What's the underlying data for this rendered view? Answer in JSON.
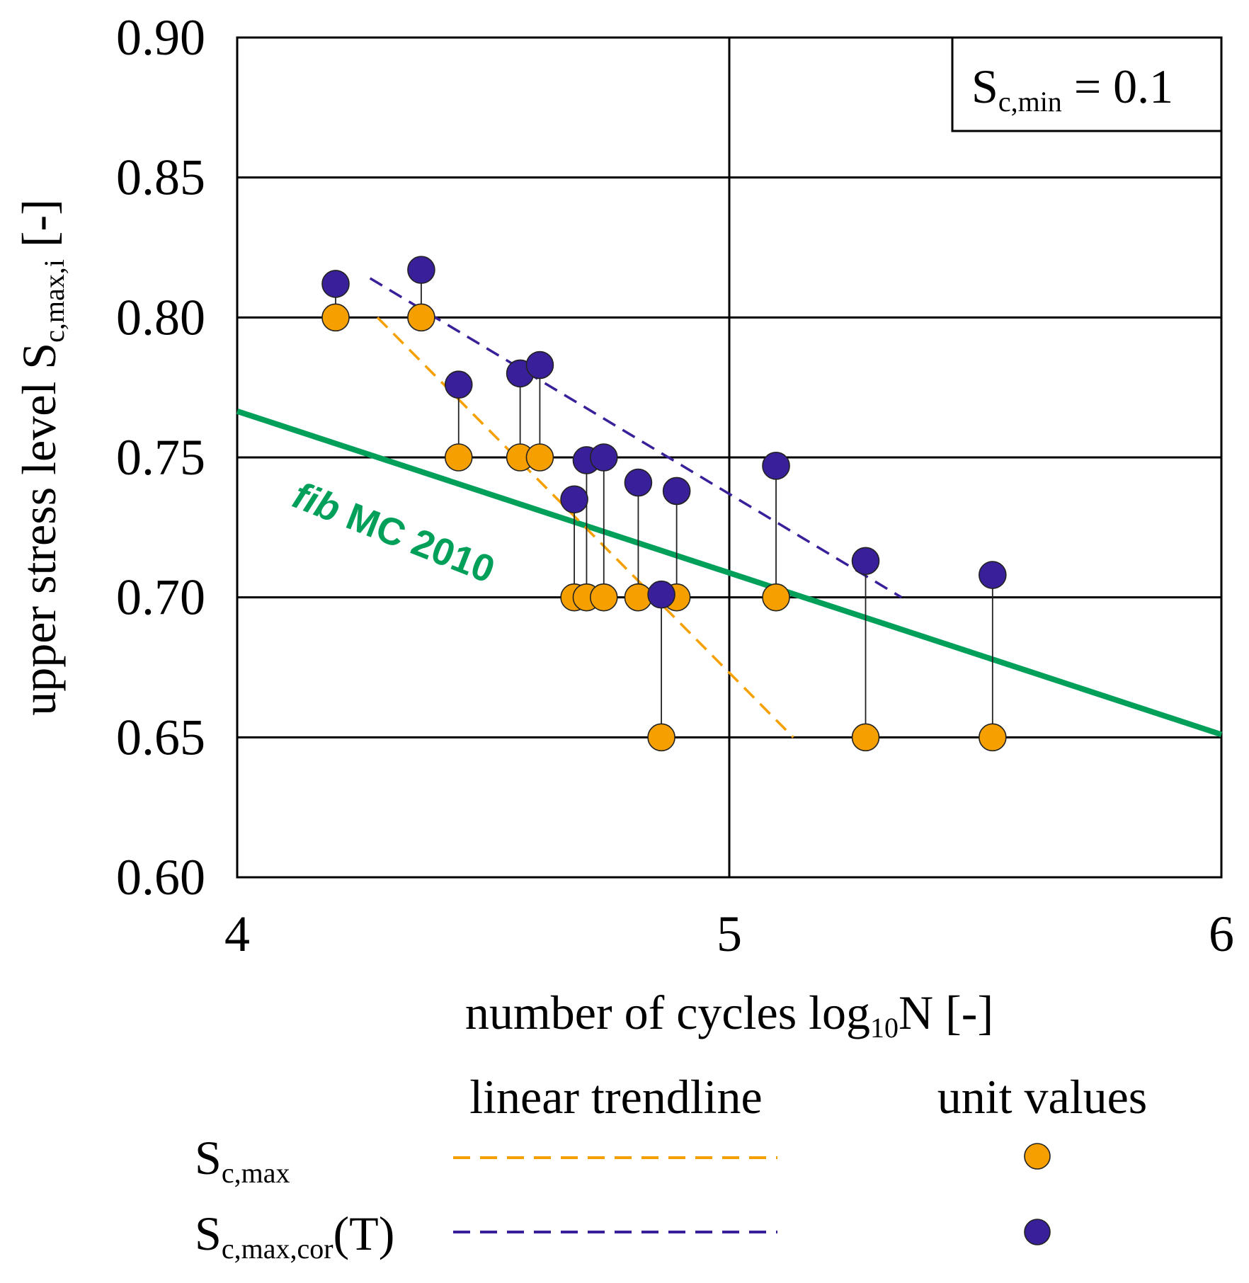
{
  "chart_data": {
    "type": "scatter",
    "xlabel": {
      "main": "number of cycles log",
      "sub": "10",
      "tail": "N [-]"
    },
    "ylabel": {
      "main": "upper stress level S",
      "sub": "c,max,i",
      "tail": " [-]"
    },
    "xlim": [
      4,
      6
    ],
    "ylim": [
      0.6,
      0.9
    ],
    "xticks": [
      4,
      5,
      6
    ],
    "xtick_labels": [
      "4",
      "5",
      "6"
    ],
    "yticks": [
      0.6,
      0.65,
      0.7,
      0.75,
      0.8,
      0.85,
      0.9
    ],
    "ytick_labels": [
      "0.60",
      "0.65",
      "0.70",
      "0.75",
      "0.80",
      "0.85",
      "0.90"
    ],
    "grid": true,
    "annotation_box": {
      "main": "S",
      "sub": "c,min",
      "tail": " = 0.1"
    },
    "curve_label": {
      "italic": "fib",
      "rest": " MC 2010"
    },
    "colors": {
      "orange": "#F5A000",
      "purple": "#3A1F9A",
      "green": "#00A05A",
      "stem": "#222222",
      "axis": "#000000"
    },
    "series": [
      {
        "name": "S_c,max unit values",
        "marker": "orange",
        "points": [
          [
            4.2,
            0.8
          ],
          [
            4.374,
            0.8
          ],
          [
            4.45,
            0.75
          ],
          [
            4.575,
            0.75
          ],
          [
            4.615,
            0.75
          ],
          [
            4.685,
            0.7
          ],
          [
            4.71,
            0.7
          ],
          [
            4.745,
            0.7
          ],
          [
            4.815,
            0.7
          ],
          [
            4.862,
            0.65
          ],
          [
            4.893,
            0.7
          ],
          [
            5.095,
            0.7
          ],
          [
            5.277,
            0.65
          ],
          [
            5.535,
            0.65
          ]
        ]
      },
      {
        "name": "S_c,max,cor(T) unit values",
        "marker": "purple",
        "points": [
          [
            4.2,
            0.812
          ],
          [
            4.374,
            0.817
          ],
          [
            4.45,
            0.776
          ],
          [
            4.575,
            0.78
          ],
          [
            4.615,
            0.783
          ],
          [
            4.685,
            0.735
          ],
          [
            4.71,
            0.749
          ],
          [
            4.745,
            0.75
          ],
          [
            4.815,
            0.741
          ],
          [
            4.862,
            0.701
          ],
          [
            4.893,
            0.738
          ],
          [
            5.095,
            0.747
          ],
          [
            5.277,
            0.713
          ],
          [
            5.535,
            0.708
          ]
        ]
      }
    ],
    "lines": [
      {
        "name": "fib MC 2010",
        "style": "solid",
        "color": "green",
        "x": [
          4.0,
          6.0
        ],
        "y": [
          0.7665,
          0.651
        ]
      },
      {
        "name": "S_c,max linear trendline",
        "style": "dashed",
        "color": "orange",
        "x": [
          4.285,
          5.13
        ],
        "y": [
          0.8,
          0.65
        ]
      },
      {
        "name": "S_c,max,cor(T) linear trendline",
        "style": "dashed",
        "color": "purple",
        "x": [
          4.27,
          5.35
        ],
        "y": [
          0.814,
          0.7
        ]
      }
    ],
    "legend": {
      "header_line": "linear trendline",
      "header_marker": "unit values",
      "rows": [
        {
          "main": "S",
          "sub": "c,max",
          "tail": "",
          "color": "orange"
        },
        {
          "main": "S",
          "sub": "c,max,cor",
          "tail": "(T)",
          "color": "purple"
        }
      ]
    }
  }
}
